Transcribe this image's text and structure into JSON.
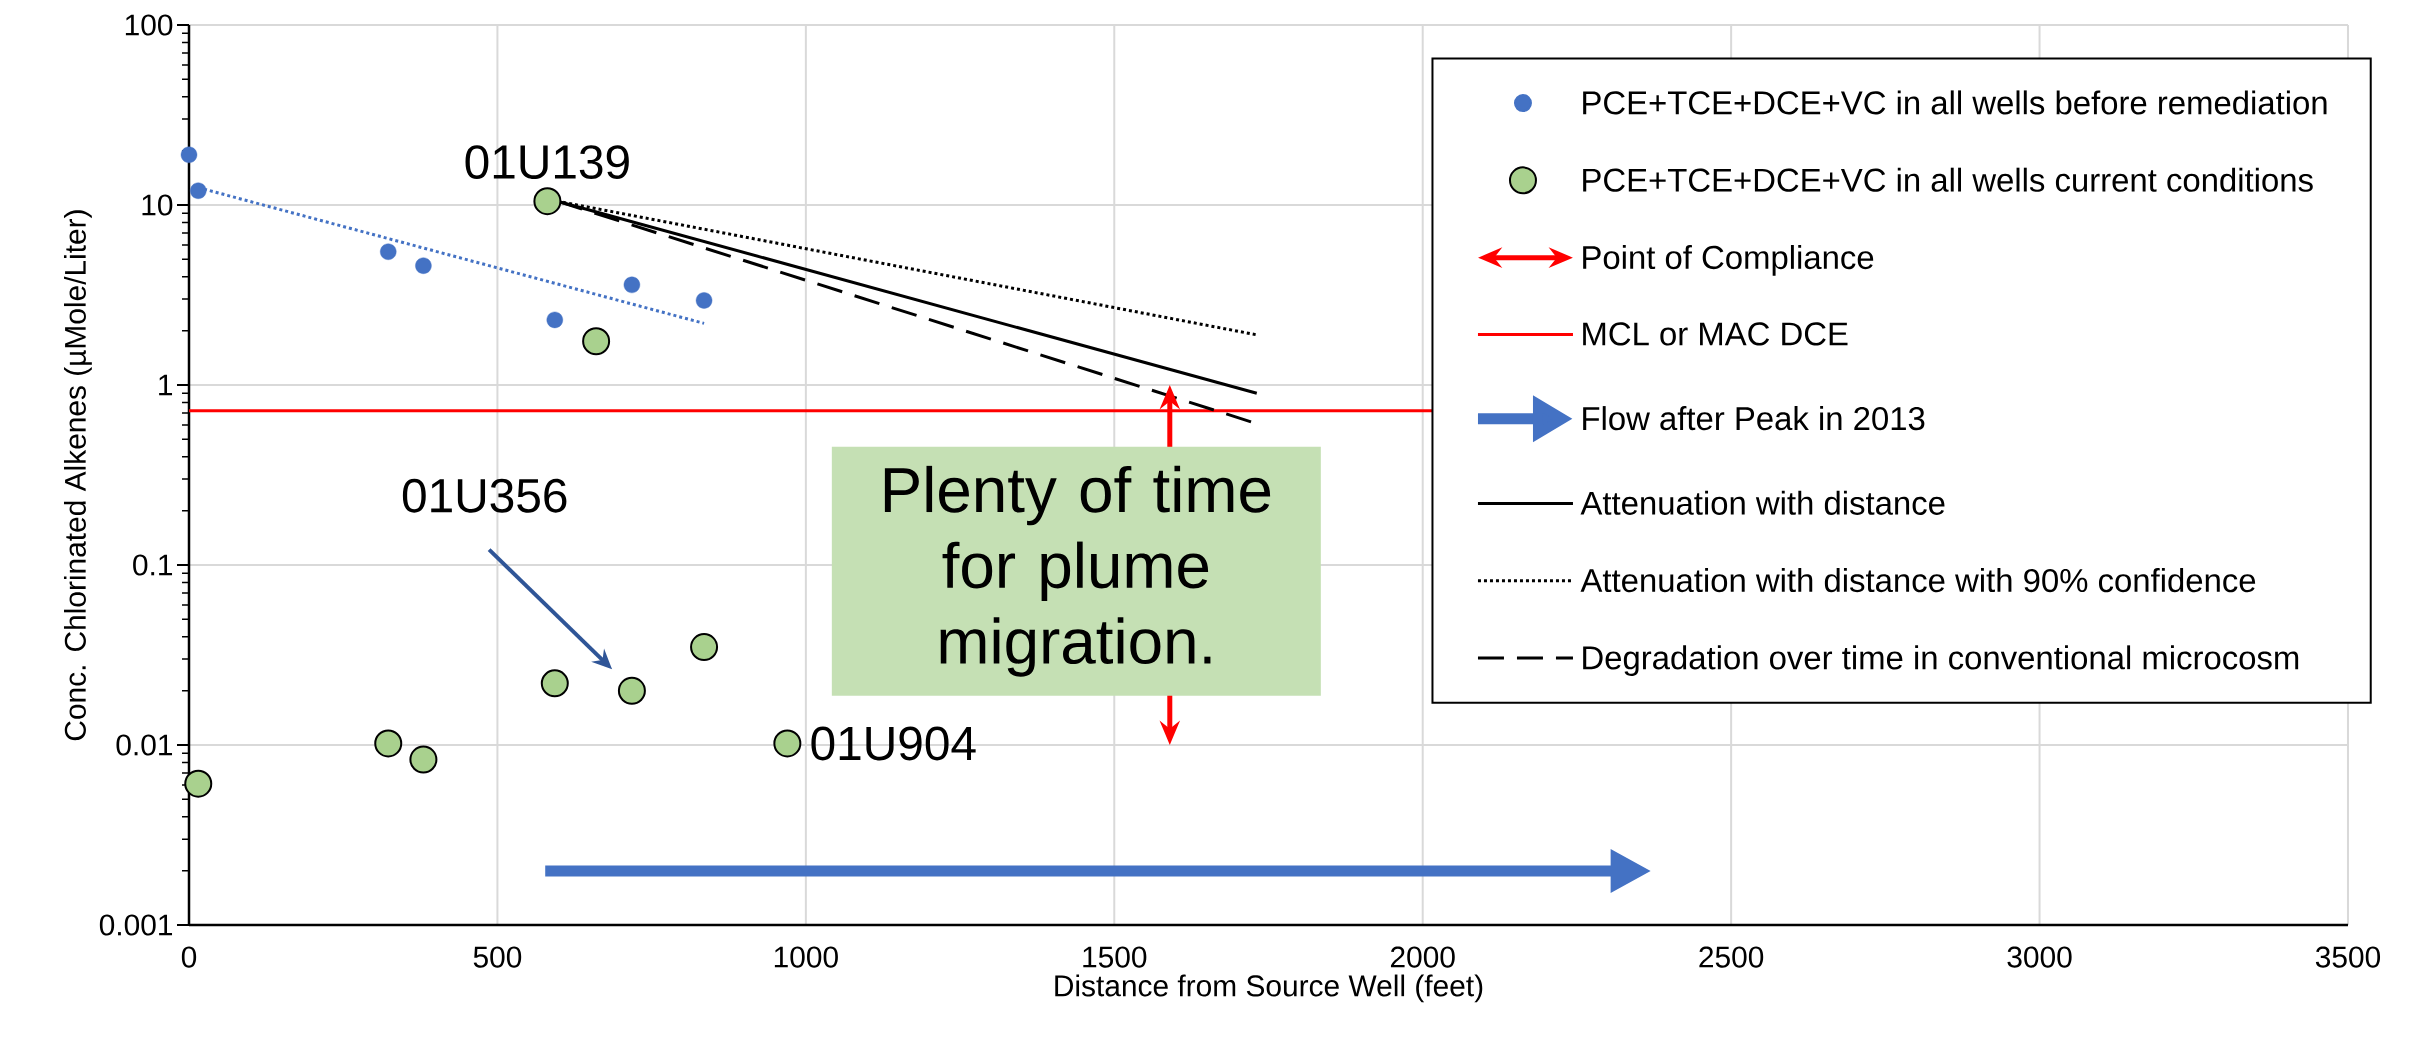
{
  "chart_data": {
    "type": "scatter",
    "xlabel": "Distance from Source Well (feet)",
    "ylabel": "Conc. Chlorinated Alkenes (µMole/Liter)",
    "xlim": [
      0,
      3500
    ],
    "xticks": [
      0,
      500,
      1000,
      1500,
      2000,
      2500,
      3000,
      3500
    ],
    "ylim": [
      0.001,
      100
    ],
    "yticks": [
      0.001,
      0.01,
      0.1,
      1,
      10,
      100
    ],
    "log": "y",
    "grid": true,
    "legend": "top right",
    "series": [
      {
        "name": "PCE+TCE+DCE+VC in all wells before remediation",
        "color": "#4472c4",
        "marker": "circle",
        "x": [
          0,
          15,
          323,
          380,
          593,
          718,
          835
        ],
        "values": [
          19,
          12,
          5.5,
          4.6,
          2.3,
          3.6,
          2.95
        ]
      },
      {
        "name": "PCE+TCE+DCE+VC in all wells current conditions",
        "color": "#a9d18e",
        "marker": "circle",
        "x": [
          581,
          660,
          15,
          323,
          380,
          593,
          718,
          835,
          970
        ],
        "values": [
          10.5,
          1.75,
          0.0061,
          0.0102,
          0.0083,
          0.022,
          0.02,
          0.035,
          0.0102
        ]
      },
      {
        "name": "Attenuation with distance",
        "type": "line",
        "color": "#000000",
        "line_style": "solid",
        "x": [
          597,
          1731
        ],
        "values": [
          10.5,
          0.9
        ]
      },
      {
        "name": "Attenuation with distance with 90% confidence",
        "type": "line",
        "color": "#000000",
        "line_style": "dotted",
        "x": [
          597,
          1731
        ],
        "values": [
          10.5,
          1.9
        ]
      },
      {
        "name": "Degradation over time in conventional microcosm",
        "type": "line",
        "color": "#000000",
        "line_style": "dashed",
        "x": [
          597,
          1731
        ],
        "values": [
          10.5,
          0.61
        ]
      },
      {
        "type": "line",
        "color": "#4472c4",
        "line_style": "dotted",
        "x": [
          15,
          835
        ],
        "values": [
          12.5,
          2.2
        ]
      }
    ],
    "ref_lines": [
      {
        "axis": "x",
        "value": 1590,
        "label": "Point of Compliance",
        "color": "#ff0000"
      },
      {
        "axis": "y",
        "value": 0.72,
        "label": "MCL or MAC DCE",
        "color": "#ff0000",
        "line_style": "solid"
      }
    ],
    "annotations": [
      {
        "text": "01U139",
        "x": 581,
        "y": 10.5
      },
      "01U356",
      {
        "text": "01U904",
        "x": 970,
        "y": 0.0102
      },
      "Flow after Peak in 2013",
      "Plenty of time for plume migration."
    ]
  }
}
